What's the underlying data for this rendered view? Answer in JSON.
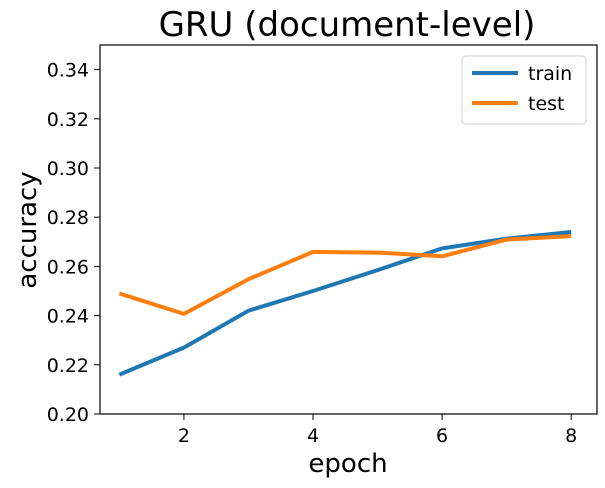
{
  "chart_data": {
    "type": "line",
    "title": "GRU (document-level)",
    "xlabel": "epoch",
    "ylabel": "accuracy",
    "xlim": [
      0.7,
      8.4
    ],
    "ylim": [
      0.2,
      0.35
    ],
    "xticks": [
      2,
      4,
      6,
      8
    ],
    "yticks": [
      0.2,
      0.22,
      0.24,
      0.26,
      0.28,
      0.3,
      0.32,
      0.34
    ],
    "ytick_labels": [
      "0.20",
      "0.22",
      "0.24",
      "0.26",
      "0.28",
      "0.30",
      "0.32",
      "0.34"
    ],
    "grid": false,
    "legend_position": "top-right",
    "x": [
      1,
      2,
      3,
      4,
      5,
      6,
      7,
      8
    ],
    "series": [
      {
        "name": "train",
        "color": "#1f77b4",
        "values": [
          0.216,
          0.227,
          0.242,
          0.25,
          0.2585,
          0.2673,
          0.2713,
          0.274
        ]
      },
      {
        "name": "test",
        "color": "#ff7f0e",
        "values": [
          0.249,
          0.2407,
          0.2548,
          0.2659,
          0.2656,
          0.2641,
          0.2709,
          0.2723
        ]
      }
    ]
  }
}
